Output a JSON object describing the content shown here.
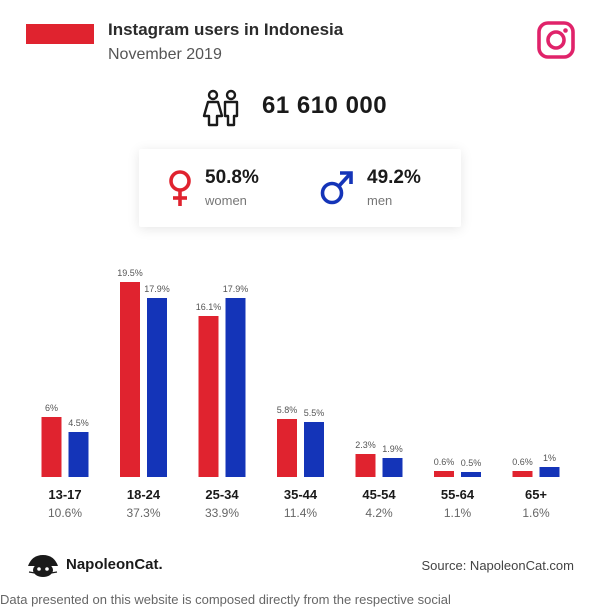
{
  "header": {
    "title": "Instagram users in Indonesia",
    "subtitle": "November 2019",
    "flag_color": "#e0232f",
    "logo_icon": "instagram-icon"
  },
  "summary": {
    "total_users": "61 610 000",
    "women": {
      "pct": "50.8%",
      "label": "women",
      "icon": "female-symbol-icon",
      "color": "#e0232f"
    },
    "men": {
      "pct": "49.2%",
      "label": "men",
      "icon": "male-symbol-icon",
      "color": "#1434b8"
    }
  },
  "footer": {
    "brand": "NapoleonCat.",
    "source": "Source: NapoleonCat.com",
    "cut_text": "Data presented on this website is composed directly from the respective social"
  },
  "chart_data": {
    "type": "bar",
    "categories": [
      "13-17",
      "18-24",
      "25-34",
      "35-44",
      "45-54",
      "55-64",
      "65+"
    ],
    "category_totals": [
      "10.6%",
      "37.3%",
      "33.9%",
      "11.4%",
      "4.2%",
      "1.1%",
      "1.6%"
    ],
    "series": [
      {
        "values": [
          6,
          19.5,
          16.1,
          5.8,
          2.3,
          0.6,
          0.6
        ],
        "labels": [
          "6%",
          "19.5%",
          "16.1%",
          "5.8%",
          "2.3%",
          "0.6%",
          "0.6%"
        ],
        "color": "#e0232f"
      },
      {
        "values": [
          4.5,
          17.9,
          17.9,
          5.5,
          1.9,
          0.5,
          1
        ],
        "labels": [
          "4.5%",
          "17.9%",
          "17.9%",
          "5.5%",
          "1.9%",
          "0.5%",
          "1%"
        ],
        "color": "#1434b8"
      }
    ],
    "ylim": [
      0,
      19.5
    ],
    "grid": false
  }
}
